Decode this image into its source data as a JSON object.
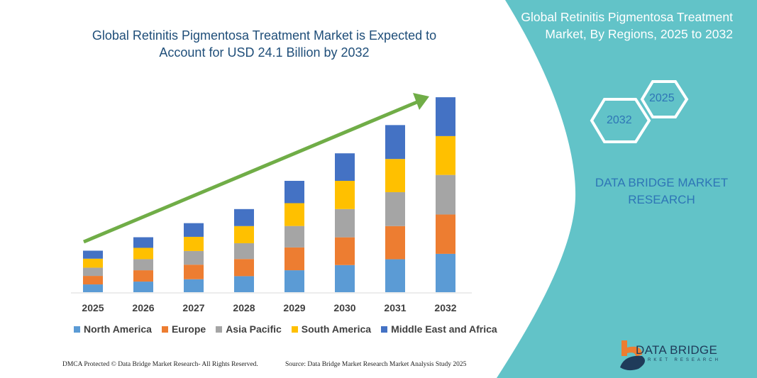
{
  "header": {
    "title": "Global Retinitis Pigmentosa Treatment Market is Expected to Account for USD 24.1 Billion by 2032"
  },
  "side_panel": {
    "title": "Global Retinitis Pigmentosa Treatment Market, By Regions, 2025 to 2032",
    "hex_start": "2025",
    "hex_end": "2032",
    "brand": "DATA BRIDGE MARKET RESEARCH",
    "logo_text": "DATA BRIDGE",
    "logo_subtext": "MARKET RESEARCH",
    "panel_color": "#62C3C8"
  },
  "footer": {
    "left": "DMCA Protected © Data Bridge Market Research-  All Rights Reserved.",
    "right": "Source: Data Bridge Market Research  Market Analysis Study 2025"
  },
  "chart_data": {
    "type": "bar",
    "stacked": true,
    "title": "Global Retinitis Pigmentosa Treatment Market is Expected to Account for USD 24.1 Billion by 2032",
    "categories": [
      "2025",
      "2026",
      "2027",
      "2028",
      "2029",
      "2030",
      "2031",
      "2032"
    ],
    "unit": "USD Billion",
    "series": [
      {
        "name": "North America",
        "color": "#5B9BD5",
        "values": [
          0.96,
          1.31,
          1.6,
          1.98,
          2.71,
          3.35,
          4.07,
          4.74
        ]
      },
      {
        "name": "Europe",
        "color": "#ED7D31",
        "values": [
          1.05,
          1.4,
          1.8,
          2.12,
          2.82,
          3.43,
          4.1,
          4.86
        ]
      },
      {
        "name": "Asia Pacific",
        "color": "#A5A5A5",
        "values": [
          1.02,
          1.37,
          1.69,
          1.95,
          2.65,
          3.49,
          4.19,
          4.89
        ]
      },
      {
        "name": "South America",
        "color": "#FFC000",
        "values": [
          1.11,
          1.4,
          1.75,
          2.12,
          2.82,
          3.49,
          4.1,
          4.8
        ]
      },
      {
        "name": "Middle East and Africa",
        "color": "#4472C4",
        "values": [
          0.99,
          1.31,
          1.69,
          2.1,
          2.76,
          3.4,
          4.19,
          4.8
        ]
      }
    ],
    "ylim": [
      0,
      24.1
    ],
    "trend_arrow_color": "#70AD47",
    "legend_position": "bottom",
    "grid": false,
    "y_axis_visible": false
  }
}
